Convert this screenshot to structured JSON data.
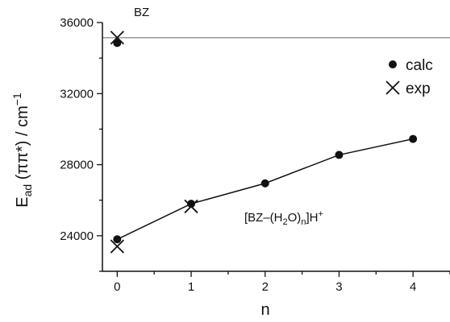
{
  "chart_data": {
    "type": "scatter",
    "xlabel": "n",
    "ylabel": {
      "base": "E",
      "base_sub": "ad",
      "paren": "(ππ*)",
      "unit_prefix": "/ cm",
      "unit_sup": "−1"
    },
    "xlim": [
      -0.2,
      4.5
    ],
    "ylim": [
      22000,
      36000
    ],
    "xticks": [
      0,
      1,
      2,
      3,
      4
    ],
    "yticks": [
      24000,
      28000,
      32000,
      36000
    ],
    "reference_line": {
      "y": 35150,
      "label": "BZ"
    },
    "series": [
      {
        "name": "calc",
        "marker": "dot",
        "connected": true,
        "points": [
          {
            "x": 0,
            "y": 23800
          },
          {
            "x": 1,
            "y": 25800
          },
          {
            "x": 2,
            "y": 26950
          },
          {
            "x": 3,
            "y": 28550
          },
          {
            "x": 4,
            "y": 29450
          }
        ]
      },
      {
        "name": "exp",
        "marker": "x",
        "connected": false,
        "points": [
          {
            "x": 0,
            "y": 23400
          },
          {
            "x": 1,
            "y": 25650
          }
        ]
      },
      {
        "name": "BZ",
        "marker": "mixed",
        "connected": false,
        "points": [
          {
            "x": 0,
            "y": 34850,
            "marker": "dot"
          },
          {
            "x": 0,
            "y": 35150,
            "marker": "x"
          }
        ]
      }
    ],
    "annotation": {
      "pre": "[BZ–(H",
      "sub1": "2",
      "mid": "O)",
      "sub2": "n",
      "post": "]H",
      "sup": "+"
    },
    "legend": {
      "position": "top-right",
      "entries": [
        {
          "label": "calc",
          "marker": "dot"
        },
        {
          "label": "exp",
          "marker": "x"
        }
      ]
    },
    "colors": {
      "line": "#111111",
      "reference": "#999999",
      "axis": "#111111"
    }
  }
}
